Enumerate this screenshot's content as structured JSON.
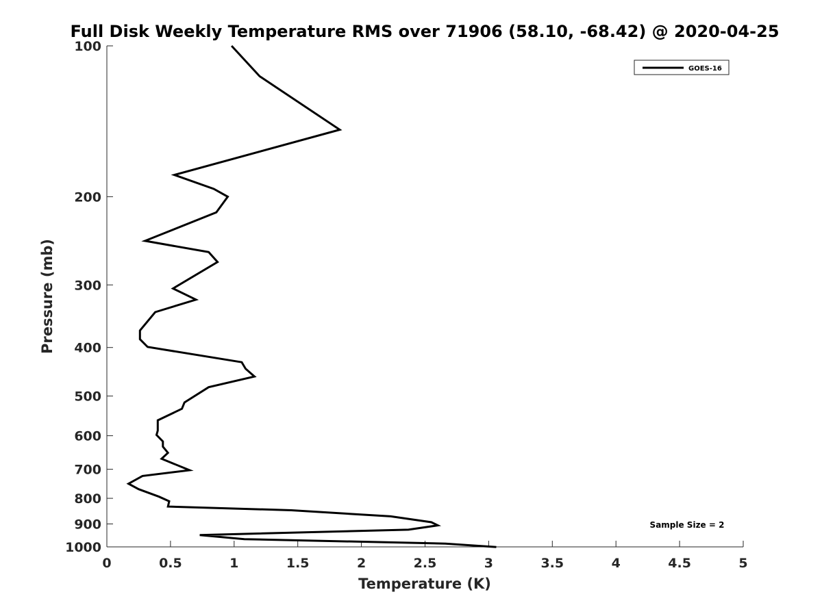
{
  "chart_data": {
    "type": "line",
    "title": "Full Disk Weekly Temperature RMS over 71906 (58.10, -68.42) @ 2020-04-25",
    "xlabel": "Temperature (K)",
    "ylabel": "Pressure (mb)",
    "xlim": [
      0,
      5
    ],
    "ylim": [
      100,
      1000
    ],
    "y_scale": "log",
    "y_reversed": true,
    "grid": false,
    "legend_position": "top-right",
    "x_ticks": [
      "0",
      "0.5",
      "1",
      "1.5",
      "2",
      "2.5",
      "3",
      "3.5",
      "4",
      "4.5",
      "5"
    ],
    "y_ticks": [
      "100",
      "200",
      "300",
      "400",
      "500",
      "600",
      "700",
      "800",
      "900",
      "1000"
    ],
    "annotation": "Sample Size = 2",
    "series": [
      {
        "name": "GOES-16",
        "color": "#000000",
        "x": [
          0.98,
          1.2,
          1.83,
          0.53,
          0.84,
          0.95,
          0.86,
          0.3,
          0.8,
          0.87,
          0.52,
          0.7,
          0.38,
          0.26,
          0.26,
          0.32,
          1.06,
          1.09,
          1.16,
          0.8,
          0.61,
          0.59,
          0.4,
          0.4,
          0.39,
          0.44,
          0.44,
          0.48,
          0.43,
          0.65,
          0.28,
          0.17,
          0.25,
          0.41,
          0.49,
          0.48,
          1.45,
          2.23,
          2.55,
          2.6,
          2.37,
          0.73,
          1.08,
          2.66,
          3.06
        ],
        "y": [
          100,
          115,
          147,
          181,
          193,
          200,
          215,
          245,
          258,
          270,
          305,
          321,
          340,
          370,
          385,
          399,
          428,
          441,
          457,
          480,
          515,
          530,
          559,
          586,
          598,
          616,
          631,
          649,
          667,
          703,
          722,
          748,
          767,
          794,
          811,
          831,
          845,
          869,
          893,
          906,
          924,
          947,
          965,
          985,
          1001
        ]
      }
    ]
  }
}
